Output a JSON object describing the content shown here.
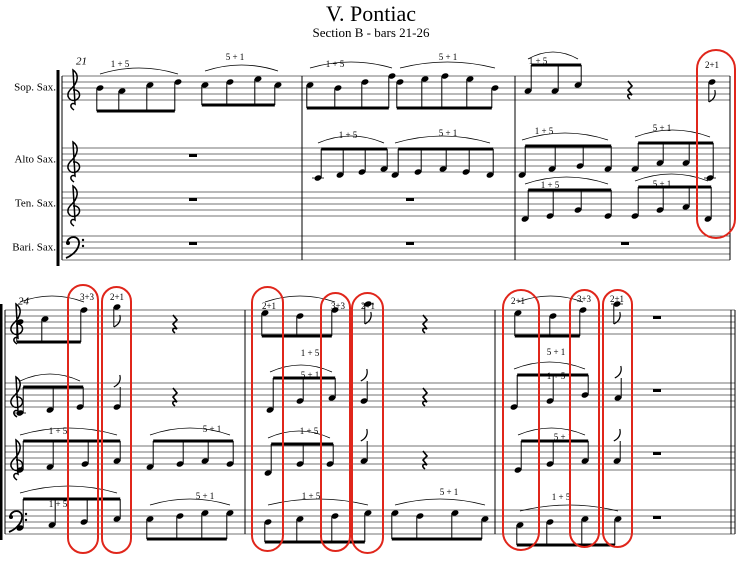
{
  "header": {
    "title": "V. Pontiac",
    "subtitle": "Section B - bars 21-26"
  },
  "instruments": [
    "Sop. Sax.",
    "Alto Sax.",
    "Ten. Sax.",
    "Bari. Sax."
  ],
  "systems": [
    {
      "bar_number": "21",
      "annotations": [
        "1 + 5",
        "5 + 1",
        "1 + 5",
        "5 + 1",
        "1 + 5",
        "2+1",
        "1 + 5",
        "5 + 1",
        "1 + 5",
        "5 + 1",
        "1 + 5",
        "5 + 1"
      ]
    },
    {
      "bar_number": "24",
      "annotations": [
        "3+3",
        "2+1",
        "2+1",
        "1 + 5",
        "3+3",
        "2+1",
        "2+1",
        "5 + 1",
        "3+3",
        "2+1",
        "5 + 1",
        "1 + 5",
        "1 + 5",
        "5 + 1",
        "1 + 5",
        "5 + 1",
        "1 + 5",
        "5 + 1",
        "1 + 5",
        "5 + 1",
        "1 + 5"
      ]
    }
  ]
}
